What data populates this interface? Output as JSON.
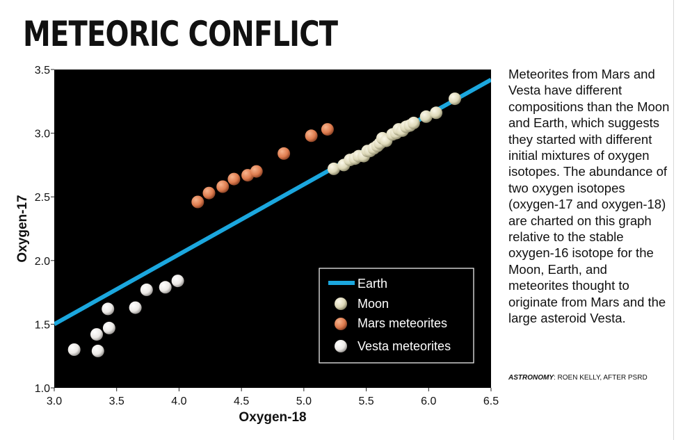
{
  "title": "METEORIC CONFLICT",
  "description": "Meteorites from Mars and Vesta have different compositions than the Moon and Earth, which suggests they started with different initial mixtures of oxygen isotopes. The abundance of two oxygen isotopes (oxygen-17 and oxygen-18) are charted on this graph relative to the stable oxygen-16 isotope for the Moon, Earth, and meteorites thought to originate from Mars and the large asteroid Vesta.",
  "credit": {
    "publication": "ASTRONOMY",
    "text": ": ROEN KELLY, AFTER PSRD"
  },
  "colors": {
    "plot_background": "#000000",
    "earth_line": "#1ba7de",
    "moon": "#e4e0c4",
    "mars": "#e07e50",
    "vesta": "#f4f2f0"
  },
  "chart_data": {
    "type": "scatter",
    "title": "METEORIC CONFLICT",
    "xlabel": "Oxygen-18",
    "ylabel": "Oxygen-17",
    "xlim": [
      3.0,
      6.5
    ],
    "ylim": [
      1.0,
      3.5
    ],
    "xticks": [
      "3.0",
      "3.5",
      "4.0",
      "4.5",
      "5.0",
      "5.5",
      "6.0",
      "6.5"
    ],
    "yticks": [
      "1.0",
      "1.5",
      "2.0",
      "2.5",
      "3.0",
      "3.5"
    ],
    "grid": false,
    "legend_position": "bottom-right",
    "series": [
      {
        "name": "Earth",
        "kind": "line",
        "x": [
          3.0,
          6.5
        ],
        "y": [
          1.5,
          3.42
        ]
      },
      {
        "name": "Moon",
        "kind": "scatter",
        "x": [
          5.24,
          5.32,
          5.37,
          5.41,
          5.44,
          5.48,
          5.51,
          5.53,
          5.56,
          5.59,
          5.61,
          5.63,
          5.66,
          5.71,
          5.74,
          5.76,
          5.79,
          5.82,
          5.85,
          5.88,
          5.98,
          6.06,
          6.21
        ],
        "y": [
          2.72,
          2.75,
          2.79,
          2.8,
          2.82,
          2.82,
          2.86,
          2.86,
          2.88,
          2.9,
          2.92,
          2.96,
          2.94,
          2.99,
          3.0,
          3.03,
          3.02,
          3.05,
          3.06,
          3.08,
          3.13,
          3.16,
          3.27
        ]
      },
      {
        "name": "Mars meteorites",
        "kind": "scatter",
        "x": [
          4.15,
          4.24,
          4.35,
          4.44,
          4.55,
          4.62,
          4.84,
          5.06,
          5.19
        ],
        "y": [
          2.46,
          2.53,
          2.58,
          2.64,
          2.67,
          2.7,
          2.84,
          2.98,
          3.03
        ]
      },
      {
        "name": "Vesta meteorites",
        "kind": "scatter",
        "x": [
          3.16,
          3.34,
          3.35,
          3.43,
          3.44,
          3.65,
          3.74,
          3.89,
          3.99
        ],
        "y": [
          1.3,
          1.42,
          1.29,
          1.62,
          1.47,
          1.63,
          1.77,
          1.79,
          1.84
        ]
      }
    ]
  }
}
